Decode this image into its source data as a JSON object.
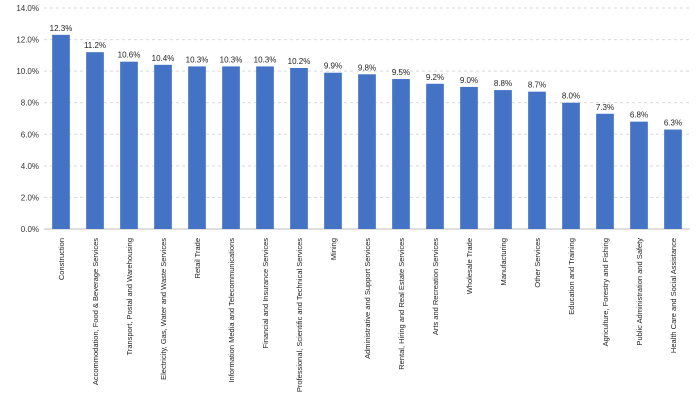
{
  "chart_data": {
    "type": "bar",
    "title": "",
    "xlabel": "",
    "ylabel": "",
    "ylim": [
      0,
      14
    ],
    "y_tick_step": 2,
    "y_tick_format": "percent_1dp",
    "grid": "horizontal-dashed",
    "legend": "none",
    "bar_color": "#4472C4",
    "categories": [
      "Construction",
      "Accommodation, Food & Beverage Services",
      "Transport, Postal and Warehousing",
      "Electricity, Gas, Water and Waste Services",
      "Retail Trade",
      "Information Media and Telecommunications",
      "Financial and Insurance Services",
      "Professional, Scientific and Technical Services",
      "Mining",
      "Administrative and Support Services",
      "Rental, Hiring and Real Estate Services",
      "Arts and Recreation Services",
      "Wholesale Trade",
      "Manufacturing",
      "Other Services",
      "Education and Training",
      "Agriculture, Forestry and Fishing",
      "Public Administration and Safety",
      "Health Care and Social Assistance"
    ],
    "values": [
      12.3,
      11.2,
      10.6,
      10.4,
      10.3,
      10.3,
      10.3,
      10.2,
      9.9,
      9.8,
      9.5,
      9.2,
      9.0,
      8.8,
      8.7,
      8.0,
      7.3,
      6.8,
      6.3
    ],
    "data_labels": [
      "12.3%",
      "11.2%",
      "10.6%",
      "10.4%",
      "10.3%",
      "10.3%",
      "10.3%",
      "10.2%",
      "9.9%",
      "9.8%",
      "9.5%",
      "9.2%",
      "9.0%",
      "8.8%",
      "8.7%",
      "8.0%",
      "7.3%",
      "6.8%",
      "6.3%"
    ],
    "y_ticks": [
      "0.0%",
      "2.0%",
      "4.0%",
      "6.0%",
      "8.0%",
      "10.0%",
      "12.0%",
      "14.0%"
    ]
  }
}
